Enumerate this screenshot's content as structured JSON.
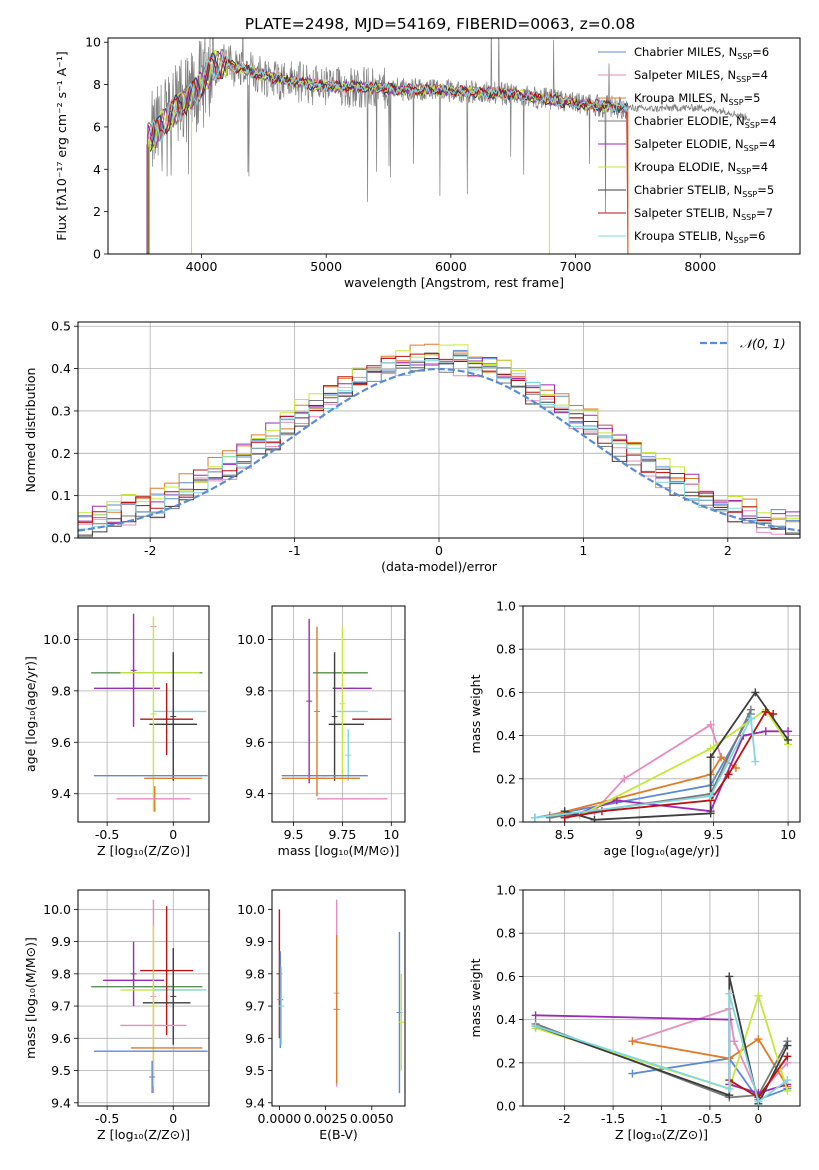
{
  "title": "PLATE=2498, MJD=54169, FIBERID=0063, z=0.08",
  "chart_data": [
    {
      "type": "line",
      "id": "spectrum",
      "xlabel": "wavelength [Angstrom, rest frame]",
      "ylabel": "Flux [fλ10⁻¹⁷ erg cm⁻² s⁻¹ A⁻¹]",
      "xlim": [
        3250,
        8800
      ],
      "ylim": [
        0,
        10.2
      ],
      "xticks": [
        4000,
        5000,
        6000,
        7000,
        8000
      ],
      "yticks": [
        0,
        2,
        4,
        6,
        8,
        10
      ],
      "grid": false,
      "legend_position": "top-right",
      "data_range": [
        3600,
        7420
      ],
      "continuum": {
        "x": [
          3550,
          3600,
          3700,
          3800,
          3900,
          4000,
          4100,
          4200,
          4400,
          4600,
          4800,
          5000,
          5200,
          5500,
          6000,
          6500,
          7000,
          7420
        ],
        "y": [
          5.6,
          5.5,
          6.2,
          6.9,
          7.4,
          8.0,
          8.9,
          9.0,
          8.6,
          8.3,
          8.1,
          7.9,
          7.9,
          7.8,
          7.7,
          7.55,
          7.1,
          6.9
        ]
      },
      "stellib_extension": {
        "x": [
          7420,
          7600,
          7800,
          8000,
          8200,
          8400
        ],
        "y": [
          6.9,
          6.85,
          6.9,
          6.9,
          6.75,
          6.4
        ]
      },
      "series": [
        {
          "name": "Chabrier MILES, N",
          "sub": "SSP",
          "suffix": "=6",
          "color": "#5b8bd6"
        },
        {
          "name": "Salpeter MILES, N",
          "sub": "SSP",
          "suffix": "=4",
          "color": "#e88bbf"
        },
        {
          "name": "Kroupa MILES, N",
          "sub": "SSP",
          "suffix": "=5",
          "color": "#e07b28"
        },
        {
          "name": "Chabrier ELODIE, N",
          "sub": "SSP",
          "suffix": "=4",
          "color": "#7a7a7a"
        },
        {
          "name": "Salpeter ELODIE, N",
          "sub": "SSP",
          "suffix": "=4",
          "color": "#9b2bb5"
        },
        {
          "name": "Kroupa ELODIE, N",
          "sub": "SSP",
          "suffix": "=4",
          "color": "#c6e83a"
        },
        {
          "name": "Chabrier STELIB, N",
          "sub": "SSP",
          "suffix": "=5",
          "color": "#3d3d3d"
        },
        {
          "name": "Salpeter STELIB, N",
          "sub": "SSP",
          "suffix": "=7",
          "color": "#b81414"
        },
        {
          "name": "Kroupa STELIB, N",
          "sub": "SSP",
          "suffix": "=6",
          "color": "#7fd9e0"
        }
      ]
    },
    {
      "type": "line",
      "id": "residuals",
      "xlabel": "(data-model)/error",
      "ylabel": "Normed distribution",
      "xlim": [
        -2.5,
        2.5
      ],
      "ylim": [
        0,
        0.51
      ],
      "xticks": [
        -2,
        -1,
        0,
        1,
        2
      ],
      "yticks": [
        0.0,
        0.1,
        0.2,
        0.3,
        0.4,
        0.5
      ],
      "grid": true,
      "legend_position": "top-right",
      "legend_label": "𝒩(0, 1)",
      "gaussian_color": "#5b8bd6",
      "bin_width": 0.1,
      "bins_start": -2.5,
      "series_colors": [
        "#5b8bd6",
        "#e88bbf",
        "#e07b28",
        "#7a7a7a",
        "#9b2bb5",
        "#c6e83a",
        "#3d3d3d",
        "#b81414",
        "#7fd9e0"
      ],
      "series_offsets": [
        0.006,
        -0.012,
        0.015,
        -0.008,
        0.01,
        0.02,
        -0.015,
        0.004,
        -0.004
      ]
    },
    {
      "type": "scatter",
      "id": "age-vs-Z",
      "xlabel": "Z [log₁₀(Z/Z⊙)]",
      "ylabel": "age  [log₁₀(age/yr)]",
      "xlim": [
        -0.72,
        0.27
      ],
      "ylim": [
        9.29,
        10.13
      ],
      "xticks": [
        -0.5,
        0.0
      ],
      "yticks": [
        9.4,
        9.6,
        9.8,
        10.0
      ],
      "grid": true,
      "points": [
        {
          "x": -0.15,
          "y": 10.05,
          "xerr": 0.0,
          "yerr": 0.0,
          "color": "#e88bbf"
        },
        {
          "x": -0.3,
          "y": 9.88,
          "xerr": 0.0,
          "yerr": 0.22,
          "color": "#9b2bb5"
        },
        {
          "x": -0.2,
          "y": 9.87,
          "xerr": 0.42,
          "yerr": 0.0,
          "color": "#5a8f5a"
        },
        {
          "x": -0.1,
          "y": 9.87,
          "xerr": 0.3,
          "yerr": 0.0,
          "color": "#c6e83a"
        },
        {
          "x": -0.35,
          "y": 9.81,
          "xerr": 0.25,
          "yerr": 0.0,
          "color": "#9b2bb5"
        },
        {
          "x": 0.05,
          "y": 9.72,
          "xerr": 0.2,
          "yerr": 0.0,
          "color": "#7fd9e0"
        },
        {
          "x": -0.05,
          "y": 9.69,
          "xerr": 0.2,
          "yerr": 0.14,
          "color": "#b81414"
        },
        {
          "x": 0.0,
          "y": 9.67,
          "xerr": 0.18,
          "yerr": 0.0,
          "color": "#3d3d3d"
        },
        {
          "x": -0.15,
          "y": 9.71,
          "xerr": 0.0,
          "yerr": 0.38,
          "color": "#c6e83a"
        },
        {
          "x": 0.0,
          "y": 9.7,
          "xerr": 0.0,
          "yerr": 0.25,
          "color": "#3d3d3d"
        },
        {
          "x": -0.17,
          "y": 9.47,
          "xerr": 0.43,
          "yerr": 0.0,
          "color": "#5b8bd6"
        },
        {
          "x": 0.0,
          "y": 9.46,
          "xerr": 0.22,
          "yerr": 0.0,
          "color": "#e07b28"
        },
        {
          "x": -0.14,
          "y": 9.38,
          "xerr": 0.0,
          "yerr": 0.05,
          "color": "#e07b28"
        },
        {
          "x": -0.15,
          "y": 9.38,
          "xerr": 0.28,
          "yerr": 0.0,
          "color": "#e88bbf"
        }
      ]
    },
    {
      "type": "scatter",
      "id": "age-vs-mass",
      "xlabel": "mass [log₁₀(M/M⊙)]",
      "ylabel": "",
      "xlim": [
        9.39,
        10.07
      ],
      "ylim": [
        9.29,
        10.13
      ],
      "xticks": [
        9.5,
        9.75,
        10.0
      ],
      "yticks": [
        9.4,
        9.6,
        9.8,
        10.0
      ],
      "grid": true,
      "points": [
        {
          "x": 9.58,
          "y": 9.76,
          "xerr": 0.0,
          "yerr": 0.32,
          "color": "#9b2bb5"
        },
        {
          "x": 9.62,
          "y": 9.72,
          "xerr": 0.0,
          "yerr": 0.33,
          "color": "#e07b28"
        },
        {
          "x": 9.75,
          "y": 9.87,
          "xerr": 0.13,
          "yerr": 0.0,
          "color": "#c6e83a"
        },
        {
          "x": 9.74,
          "y": 9.87,
          "xerr": 0.14,
          "yerr": 0.0,
          "color": "#5a8f5a"
        },
        {
          "x": 9.8,
          "y": 9.81,
          "xerr": 0.1,
          "yerr": 0.0,
          "color": "#9b2bb5"
        },
        {
          "x": 9.8,
          "y": 9.72,
          "xerr": 0.08,
          "yerr": 0.0,
          "color": "#7fd9e0"
        },
        {
          "x": 9.9,
          "y": 9.69,
          "xerr": 0.1,
          "yerr": 0.0,
          "color": "#b81414"
        },
        {
          "x": 9.77,
          "y": 9.67,
          "xerr": 0.09,
          "yerr": 0.0,
          "color": "#3d3d3d"
        },
        {
          "x": 9.71,
          "y": 9.7,
          "xerr": 0.0,
          "yerr": 0.25,
          "color": "#3d3d3d"
        },
        {
          "x": 9.75,
          "y": 9.75,
          "xerr": 0.0,
          "yerr": 0.3,
          "color": "#c6e83a"
        },
        {
          "x": 9.78,
          "y": 9.55,
          "xerr": 0.0,
          "yerr": 0.1,
          "color": "#7fd9e0"
        },
        {
          "x": 9.66,
          "y": 9.47,
          "xerr": 0.22,
          "yerr": 0.0,
          "color": "#5b8bd6"
        },
        {
          "x": 9.64,
          "y": 9.46,
          "xerr": 0.2,
          "yerr": 0.0,
          "color": "#e07b28"
        },
        {
          "x": 9.8,
          "y": 9.38,
          "xerr": 0.18,
          "yerr": 0.0,
          "color": "#e88bbf"
        }
      ]
    },
    {
      "type": "line",
      "id": "mass-weight-vs-age",
      "xlabel": "age  [log₁₀(age/yr)]",
      "ylabel": "mass weight",
      "xlim": [
        8.22,
        10.08
      ],
      "ylim": [
        0,
        1.0
      ],
      "xticks": [
        8.5,
        9.0,
        9.5,
        10.0
      ],
      "yticks": [
        0.0,
        0.2,
        0.4,
        0.6,
        0.8,
        1.0
      ],
      "grid": true,
      "series": [
        {
          "color": "#5b8bd6",
          "x": [
            8.3,
            9.48,
            9.75
          ],
          "y": [
            0.02,
            0.17,
            0.5
          ]
        },
        {
          "color": "#e88bbf",
          "x": [
            8.7,
            8.9,
            9.48,
            9.55
          ],
          "y": [
            0.05,
            0.2,
            0.45,
            0.3
          ]
        },
        {
          "color": "#e07b28",
          "x": [
            8.4,
            9.48,
            9.55,
            9.65
          ],
          "y": [
            0.03,
            0.22,
            0.3,
            0.25
          ]
        },
        {
          "color": "#7a7a7a",
          "x": [
            8.4,
            9.48,
            9.75
          ],
          "y": [
            0.02,
            0.13,
            0.52
          ]
        },
        {
          "color": "#9b2bb5",
          "x": [
            8.5,
            8.85,
            9.48,
            9.7,
            9.85,
            10.0
          ],
          "y": [
            0.02,
            0.1,
            0.05,
            0.4,
            0.42,
            0.42
          ]
        },
        {
          "color": "#c6e83a",
          "x": [
            8.6,
            9.48,
            9.85,
            10.0
          ],
          "y": [
            0.03,
            0.34,
            0.52,
            0.36
          ]
        },
        {
          "color": "#3d3d3d",
          "x": [
            8.5,
            8.7,
            9.48,
            9.48,
            9.78,
            10.0
          ],
          "y": [
            0.05,
            0.01,
            0.04,
            0.3,
            0.6,
            0.38
          ]
        },
        {
          "color": "#b81414",
          "x": [
            8.5,
            8.75,
            9.48,
            9.6,
            9.85,
            9.9
          ],
          "y": [
            0.02,
            0.05,
            0.1,
            0.22,
            0.51,
            0.5
          ]
        },
        {
          "color": "#7fd9e0",
          "x": [
            8.3,
            9.48,
            9.75,
            9.78
          ],
          "y": [
            0.02,
            0.12,
            0.48,
            0.28
          ]
        }
      ]
    },
    {
      "type": "scatter",
      "id": "mass-vs-Z",
      "xlabel": "Z [log₁₀(Z/Z⊙)]",
      "ylabel": "mass [log₁₀(M/M⊙)]",
      "xlim": [
        -0.72,
        0.27
      ],
      "ylim": [
        9.39,
        10.06
      ],
      "xticks": [
        -0.5,
        0.0
      ],
      "yticks": [
        9.4,
        9.5,
        9.6,
        9.7,
        9.8,
        9.9,
        10.0
      ],
      "grid": true,
      "points": [
        {
          "x": -0.15,
          "y": 9.73,
          "xerr": 0.0,
          "yerr": 0.3,
          "color": "#e88bbf"
        },
        {
          "x": -0.3,
          "y": 9.8,
          "xerr": 0.0,
          "yerr": 0.1,
          "color": "#9b2bb5"
        },
        {
          "x": -0.2,
          "y": 9.76,
          "xerr": 0.42,
          "yerr": 0.0,
          "color": "#5a8f5a"
        },
        {
          "x": -0.1,
          "y": 9.75,
          "xerr": 0.3,
          "yerr": 0.0,
          "color": "#c6e83a"
        },
        {
          "x": -0.3,
          "y": 9.78,
          "xerr": 0.23,
          "yerr": 0.0,
          "color": "#9b2bb5"
        },
        {
          "x": 0.05,
          "y": 9.75,
          "xerr": 0.2,
          "yerr": 0.0,
          "color": "#7fd9e0"
        },
        {
          "x": -0.05,
          "y": 9.81,
          "xerr": 0.2,
          "yerr": 0.2,
          "color": "#b81414"
        },
        {
          "x": -0.05,
          "y": 9.71,
          "xerr": 0.18,
          "yerr": 0.0,
          "color": "#3d3d3d"
        },
        {
          "x": 0.0,
          "y": 9.73,
          "xerr": 0.0,
          "yerr": 0.15,
          "color": "#3d3d3d"
        },
        {
          "x": -0.15,
          "y": 9.64,
          "xerr": 0.25,
          "yerr": 0.0,
          "color": "#e88bbf"
        },
        {
          "x": -0.15,
          "y": 9.7,
          "xerr": 0.0,
          "yerr": 0.25,
          "color": "#c6e83a"
        },
        {
          "x": -0.05,
          "y": 9.57,
          "xerr": 0.27,
          "yerr": 0.0,
          "color": "#e07b28"
        },
        {
          "x": -0.17,
          "y": 9.56,
          "xerr": 0.43,
          "yerr": 0.0,
          "color": "#5b8bd6"
        },
        {
          "x": -0.16,
          "y": 9.48,
          "xerr": 0.0,
          "yerr": 0.05,
          "color": "#5b8bd6"
        }
      ]
    },
    {
      "type": "scatter",
      "id": "mass-vs-EBV",
      "xlabel": "E(B-V)",
      "ylabel": "",
      "xlim": [
        -0.0004,
        0.0068
      ],
      "ylim": [
        9.39,
        10.06
      ],
      "xticks": [
        0.0,
        0.0025,
        0.005
      ],
      "xticklabels": [
        "0.0000",
        "0.0025",
        "0.0050"
      ],
      "yticks": [
        9.4,
        9.5,
        9.6,
        9.7,
        9.8,
        9.9,
        10.0
      ],
      "grid": false,
      "points": [
        {
          "x": 0.0,
          "y": 9.8,
          "xerr": 0.0,
          "yerr": 0.2,
          "color": "#b81414"
        },
        {
          "x": 5e-05,
          "y": 9.72,
          "xerr": 0.0,
          "yerr": 0.15,
          "color": "#5b8bd6"
        },
        {
          "x": 0.0001,
          "y": 9.7,
          "xerr": 0.0,
          "yerr": 0.12,
          "color": "#7fd9e0"
        },
        {
          "x": 0.0031,
          "y": 9.74,
          "xerr": 0.0,
          "yerr": 0.29,
          "color": "#e88bbf"
        },
        {
          "x": 0.0031,
          "y": 9.69,
          "xerr": 0.0,
          "yerr": 0.23,
          "color": "#e07b28"
        },
        {
          "x": 0.0065,
          "y": 9.68,
          "xerr": 0.0,
          "yerr": 0.25,
          "color": "#5b8bd6"
        },
        {
          "x": 0.0066,
          "y": 9.65,
          "xerr": 0.0,
          "yerr": 0.15,
          "color": "#c6e83a"
        }
      ]
    },
    {
      "type": "line",
      "id": "mass-weight-vs-Z",
      "xlabel": "Z [log₁₀(Z/Z⊙)]",
      "ylabel": "mass weight",
      "xlim": [
        -2.43,
        0.43
      ],
      "ylim": [
        0,
        1.0
      ],
      "xticks": [
        -2.0,
        -1.5,
        -1.0,
        -0.5,
        0.0
      ],
      "yticks": [
        0.0,
        0.2,
        0.4,
        0.6,
        0.8,
        1.0
      ],
      "grid": true,
      "series": [
        {
          "color": "#5b8bd6",
          "x": [
            -1.3,
            -0.3,
            0.0,
            0.3
          ],
          "y": [
            0.15,
            0.22,
            0.03,
            0.08
          ]
        },
        {
          "color": "#e88bbf",
          "x": [
            -1.3,
            -0.3,
            -0.25,
            0.0,
            0.3
          ],
          "y": [
            0.3,
            0.45,
            0.3,
            0.05,
            0.2
          ]
        },
        {
          "color": "#e07b28",
          "x": [
            -1.3,
            -0.3,
            0.0,
            0.3
          ],
          "y": [
            0.3,
            0.22,
            0.31,
            0.09
          ]
        },
        {
          "color": "#7a7a7a",
          "x": [
            -2.3,
            -0.3,
            0.0,
            0.3
          ],
          "y": [
            0.38,
            0.04,
            0.05,
            0.3
          ]
        },
        {
          "color": "#9b2bb5",
          "x": [
            -2.3,
            -0.3,
            -0.3,
            0.0,
            0.3
          ],
          "y": [
            0.42,
            0.4,
            0.1,
            0.06,
            0.1
          ]
        },
        {
          "color": "#c6e83a",
          "x": [
            -2.3,
            -0.3,
            0.0,
            0.3
          ],
          "y": [
            0.36,
            0.08,
            0.51,
            0.07
          ]
        },
        {
          "color": "#3d3d3d",
          "x": [
            -2.3,
            -0.3,
            -0.3,
            0.0,
            0.3
          ],
          "y": [
            0.37,
            0.05,
            0.6,
            0.01,
            0.28
          ]
        },
        {
          "color": "#b81414",
          "x": [
            -0.3,
            0.0,
            0.3
          ],
          "y": [
            0.12,
            0.04,
            0.23
          ]
        },
        {
          "color": "#7fd9e0",
          "x": [
            -2.3,
            -0.3,
            -0.3,
            0.0,
            0.3
          ],
          "y": [
            0.37,
            0.08,
            0.52,
            0.02,
            0.12
          ]
        }
      ]
    }
  ]
}
